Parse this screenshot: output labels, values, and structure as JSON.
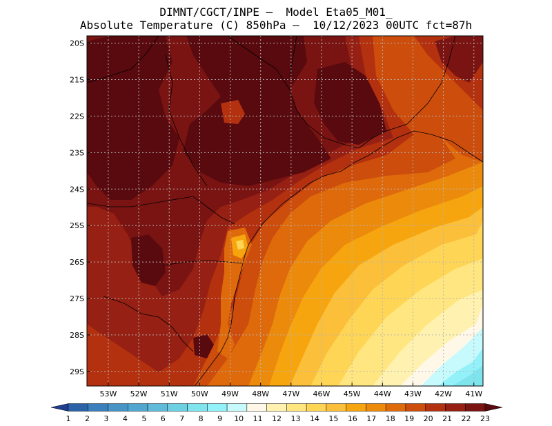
{
  "header": {
    "line1": "DIMNT/CGCT/INPE –  Model Eta05_M01_",
    "line2": "Absolute Temperature (C) 850hPa –  10/12/2023 00UTC fct=87h"
  },
  "map": {
    "lat_labels": [
      "20S",
      "21S",
      "22S",
      "23S",
      "24S",
      "25S",
      "26S",
      "27S",
      "28S",
      "29S"
    ],
    "lon_labels": [
      "53W",
      "52W",
      "51W",
      "50W",
      "49W",
      "48W",
      "47W",
      "46W",
      "45W",
      "44W",
      "43W",
      "42W",
      "41W"
    ],
    "lat_range": [
      -29.4,
      -19.8
    ],
    "lon_range": [
      -53.7,
      -40.7
    ]
  },
  "colorbar": {
    "labels": [
      "1",
      "2",
      "3",
      "4",
      "5",
      "6",
      "7",
      "8",
      "9",
      "10",
      "11",
      "12",
      "13",
      "14",
      "15",
      "16",
      "17",
      "18",
      "19",
      "20",
      "21",
      "22",
      "23"
    ],
    "colors": [
      "#1f3e8e",
      "#2c62a8",
      "#3b7fbc",
      "#4794c6",
      "#52a7d1",
      "#5fbbd9",
      "#6ccfe2",
      "#7ee5ef",
      "#93f2f9",
      "#c7fafd",
      "#fff8e8",
      "#fff2b0",
      "#ffe680",
      "#ffd556",
      "#fcbf3a",
      "#f6a50f",
      "#ec8a0c",
      "#de6a0c",
      "#cc4d0c",
      "#b3310f",
      "#962013",
      "#7a1412",
      "#580a0e"
    ]
  }
}
